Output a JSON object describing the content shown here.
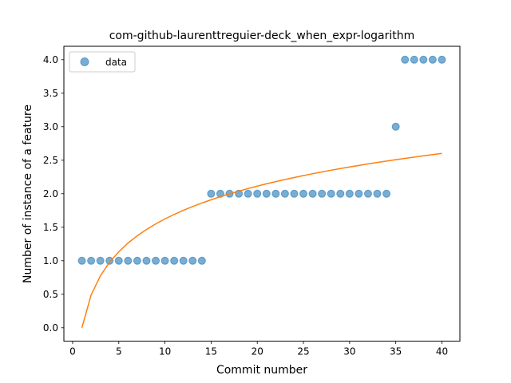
{
  "chart_data": {
    "type": "scatter",
    "title": "com-github-laurenttreguier-deck_when_expr-logarithm",
    "xlabel": "Commit number",
    "ylabel": "Number of instance of a feature",
    "xlim": [
      -0.95,
      41.95
    ],
    "ylim": [
      -0.2,
      4.2
    ],
    "xticks": [
      0,
      5,
      10,
      15,
      20,
      25,
      30,
      35,
      40
    ],
    "yticks": [
      0.0,
      0.5,
      1.0,
      1.5,
      2.0,
      2.5,
      3.0,
      3.5,
      4.0
    ],
    "ytick_labels": [
      "0.0",
      "0.5",
      "1.0",
      "1.5",
      "2.0",
      "2.5",
      "3.0",
      "3.5",
      "4.0"
    ],
    "legend_position": "top-left",
    "grid": false,
    "series": [
      {
        "name": "data",
        "kind": "scatter",
        "color": "#1f77b4",
        "x": [
          1,
          2,
          3,
          4,
          5,
          6,
          7,
          8,
          9,
          10,
          11,
          12,
          13,
          14,
          15,
          16,
          17,
          18,
          19,
          20,
          21,
          22,
          23,
          24,
          25,
          26,
          27,
          28,
          29,
          30,
          31,
          32,
          33,
          34,
          35,
          36,
          37,
          38,
          39,
          40
        ],
        "y": [
          1,
          1,
          1,
          1,
          1,
          1,
          1,
          1,
          1,
          1,
          1,
          1,
          1,
          1,
          2,
          2,
          2,
          2,
          2,
          2,
          2,
          2,
          2,
          2,
          2,
          2,
          2,
          2,
          2,
          2,
          2,
          2,
          2,
          2,
          3,
          4,
          4,
          4,
          4,
          4
        ]
      },
      {
        "kind": "line",
        "color": "#ff7f0e",
        "x": [
          1,
          2,
          3,
          4,
          5,
          6,
          7,
          8,
          9,
          10,
          11,
          12,
          13,
          14,
          15,
          16,
          17,
          18,
          19,
          20,
          21,
          22,
          23,
          24,
          25,
          26,
          27,
          28,
          29,
          30,
          31,
          32,
          33,
          34,
          35,
          36,
          37,
          38,
          39,
          40
        ],
        "y": [
          0.0,
          0.489,
          0.775,
          0.978,
          1.135,
          1.264,
          1.373,
          1.467,
          1.55,
          1.624,
          1.691,
          1.753,
          1.809,
          1.861,
          1.91,
          1.956,
          1.999,
          2.039,
          2.077,
          2.114,
          2.148,
          2.181,
          2.212,
          2.242,
          2.271,
          2.299,
          2.325,
          2.351,
          2.375,
          2.399,
          2.422,
          2.445,
          2.466,
          2.487,
          2.508,
          2.528,
          2.547,
          2.566,
          2.584,
          2.602
        ]
      }
    ]
  }
}
